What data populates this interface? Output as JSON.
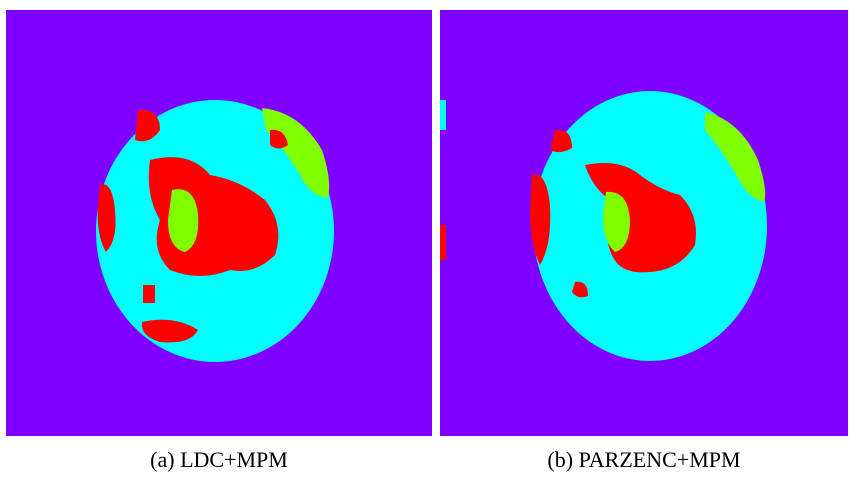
{
  "figure": {
    "panels": [
      {
        "caption": "(a) LDC+MPM"
      },
      {
        "caption": "(b) PARZENC+MPM"
      }
    ]
  }
}
